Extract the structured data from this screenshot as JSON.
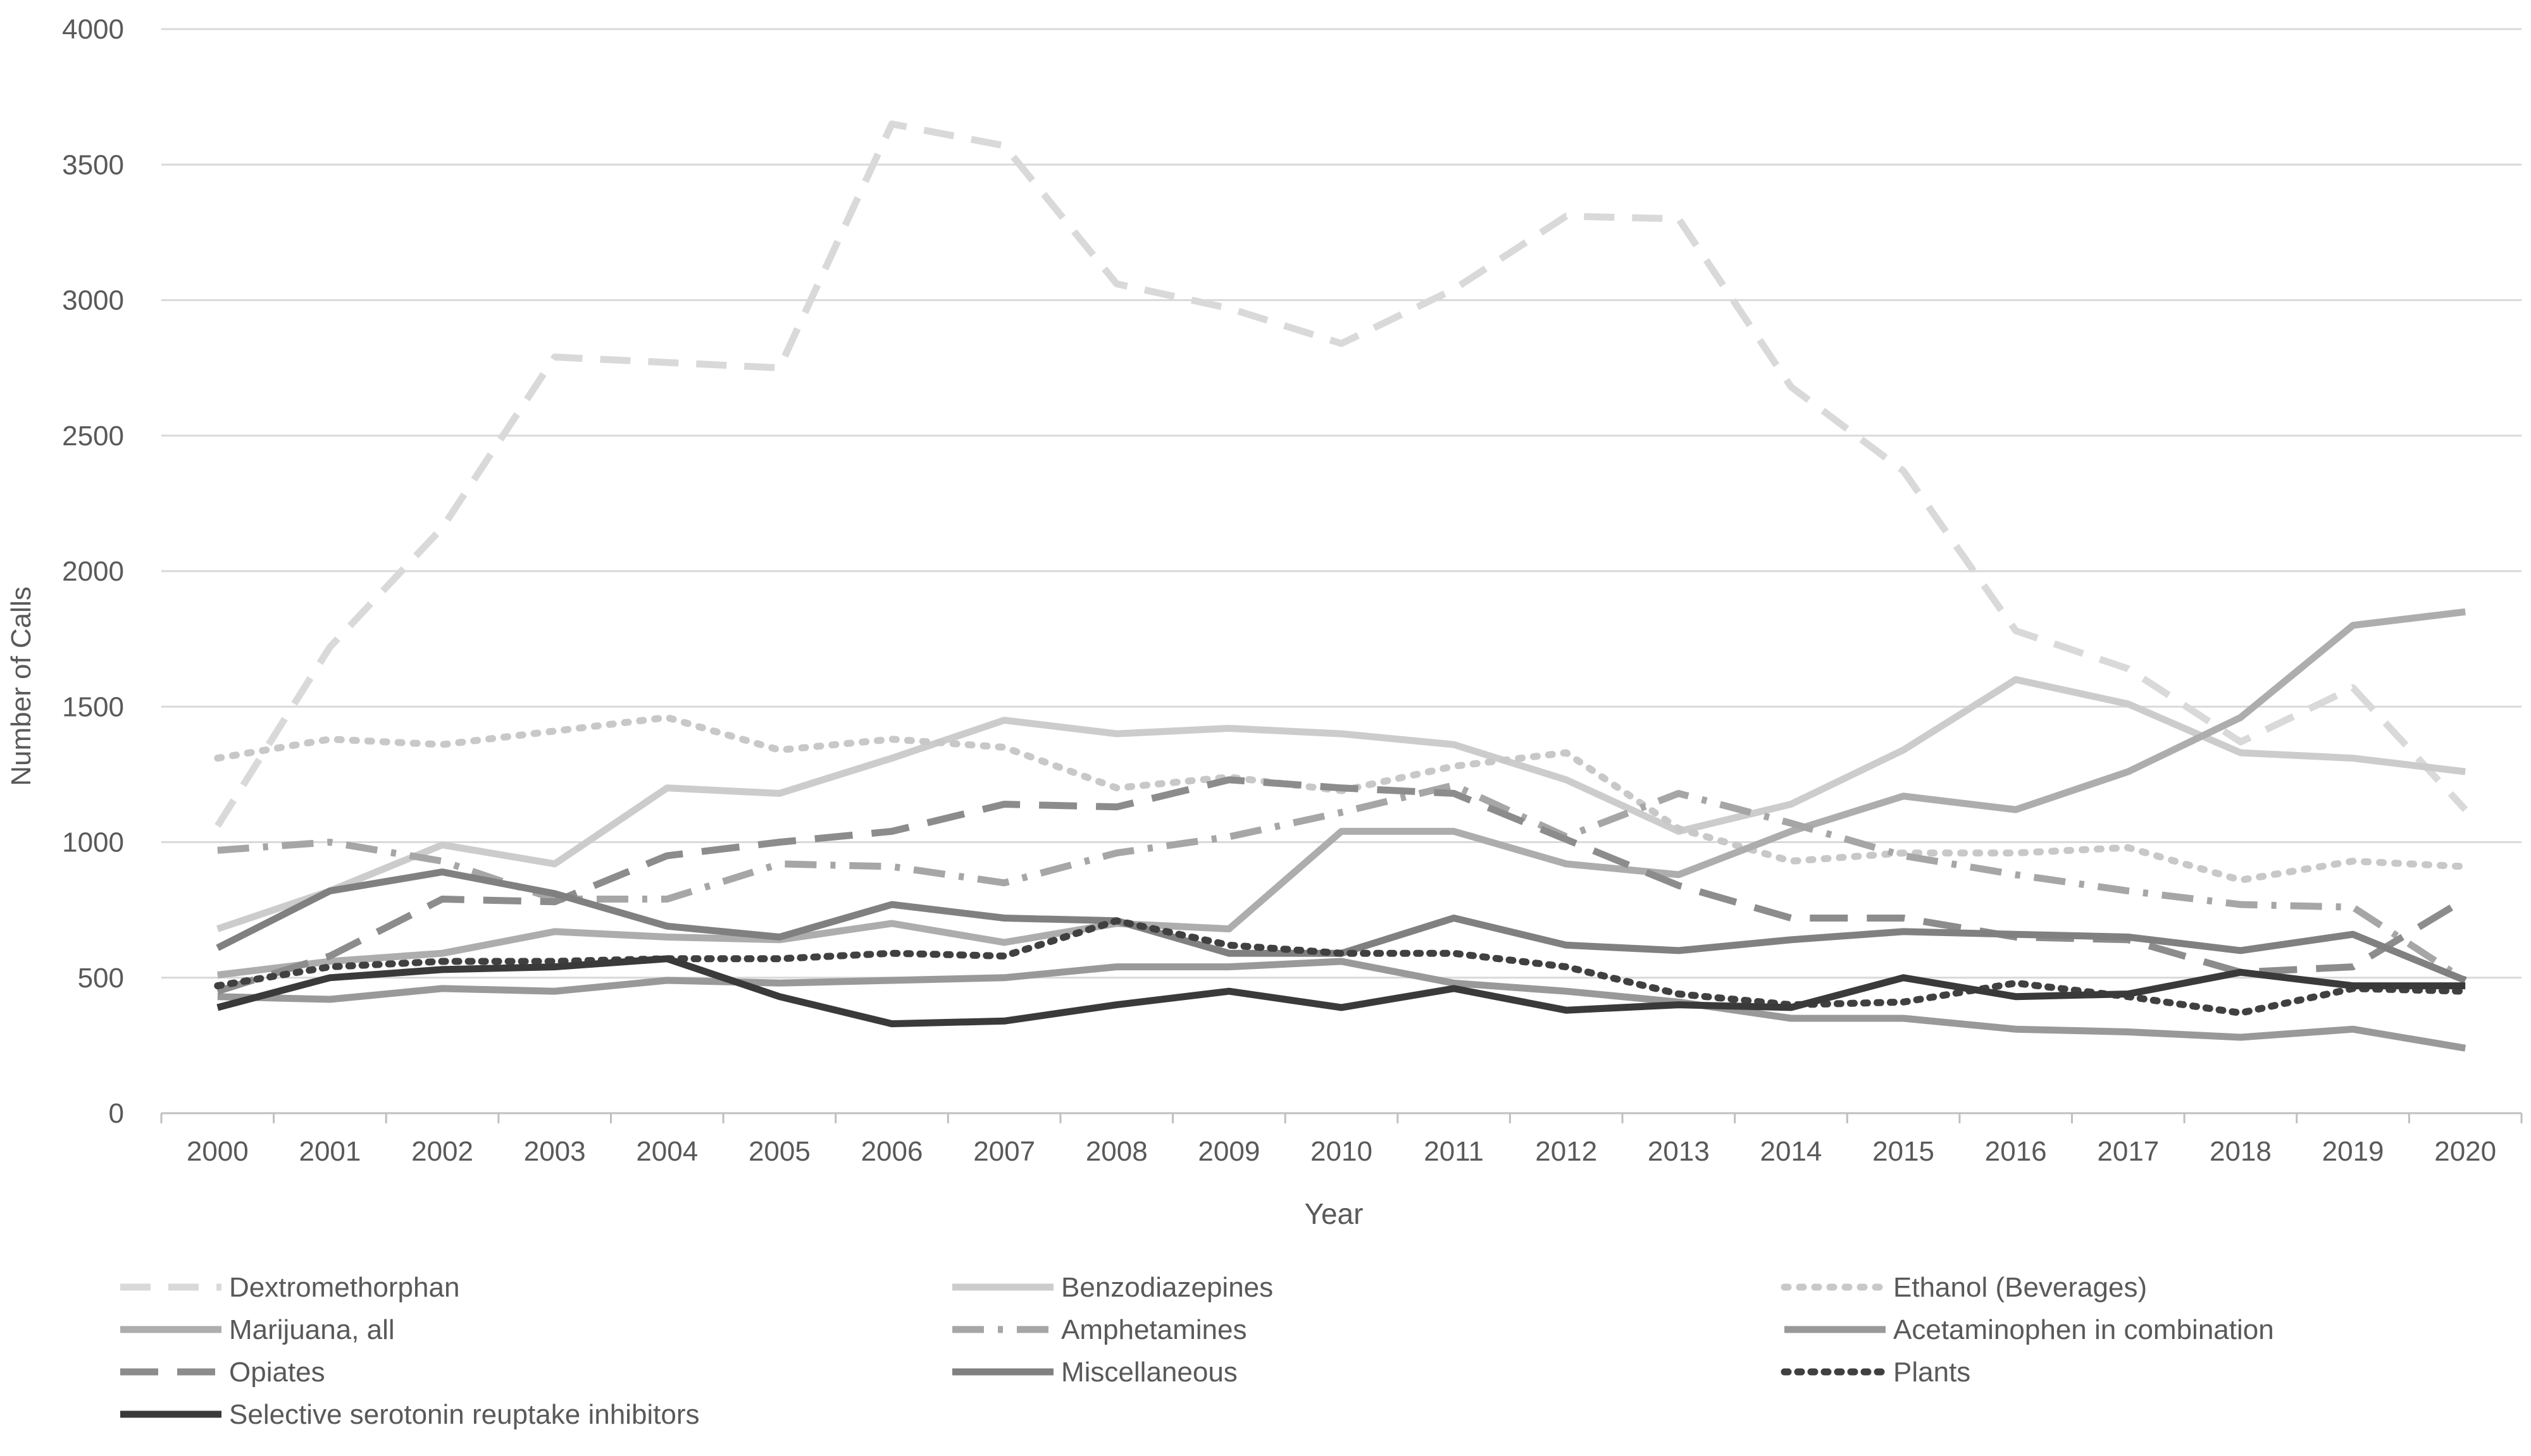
{
  "chart_data": {
    "type": "line",
    "title": "",
    "xlabel": "Year",
    "ylabel": "Number of Calls",
    "ylim": [
      0,
      4000
    ],
    "yticks": [
      0,
      500,
      1000,
      1500,
      2000,
      2500,
      3000,
      3500,
      4000
    ],
    "grid": "horizontal",
    "legend_position": "bottom",
    "x": [
      "2000",
      "2001",
      "2002",
      "2003",
      "2004",
      "2005",
      "2006",
      "2007",
      "2008",
      "2009",
      "2010",
      "2011",
      "2012",
      "2013",
      "2014",
      "2015",
      "2016",
      "2017",
      "2018",
      "2019",
      "2020"
    ],
    "series": [
      {
        "name": "Dextromethorphan",
        "color": "#d9d9d9",
        "style": "dash",
        "values": [
          1060,
          1720,
          2160,
          2790,
          2770,
          2750,
          3650,
          3570,
          3060,
          2970,
          2840,
          3040,
          3310,
          3300,
          2680,
          2370,
          1780,
          1640,
          1370,
          1570,
          1120
        ]
      },
      {
        "name": "Benzodiazepines",
        "color": "#cccccc",
        "style": "solid",
        "values": [
          680,
          820,
          990,
          920,
          1200,
          1180,
          1310,
          1450,
          1400,
          1420,
          1400,
          1360,
          1230,
          1040,
          1140,
          1340,
          1600,
          1510,
          1330,
          1310,
          1260
        ]
      },
      {
        "name": "Ethanol (Beverages)",
        "color": "#c8c8c8",
        "style": "dot",
        "values": [
          1310,
          1380,
          1360,
          1410,
          1460,
          1340,
          1380,
          1350,
          1200,
          1240,
          1190,
          1280,
          1330,
          1050,
          930,
          960,
          960,
          980,
          860,
          930,
          910
        ]
      },
      {
        "name": "Marijuana, all",
        "color": "#adadad",
        "style": "solid",
        "values": [
          510,
          560,
          590,
          670,
          650,
          640,
          700,
          630,
          700,
          680,
          1040,
          1040,
          920,
          880,
          1040,
          1170,
          1120,
          1260,
          1460,
          1800,
          1850
        ]
      },
      {
        "name": "Amphetamines",
        "color": "#a6a6a6",
        "style": "dashdot",
        "values": [
          970,
          1000,
          930,
          790,
          790,
          920,
          910,
          850,
          960,
          1020,
          1110,
          1210,
          1020,
          1180,
          1070,
          950,
          880,
          820,
          770,
          760,
          490
        ]
      },
      {
        "name": "Acetaminophen in combination",
        "color": "#999999",
        "style": "solid",
        "values": [
          430,
          420,
          460,
          450,
          490,
          480,
          490,
          500,
          540,
          540,
          560,
          480,
          450,
          410,
          350,
          350,
          310,
          300,
          280,
          310,
          240
        ]
      },
      {
        "name": "Opiates",
        "color": "#8c8c8c",
        "style": "longdash",
        "values": [
          450,
          580,
          790,
          780,
          950,
          1000,
          1040,
          1140,
          1130,
          1230,
          1200,
          1180,
          1010,
          840,
          720,
          720,
          650,
          640,
          520,
          540,
          790
        ]
      },
      {
        "name": "Miscellaneous",
        "color": "#808080",
        "style": "solid",
        "values": [
          610,
          820,
          890,
          810,
          690,
          650,
          770,
          720,
          710,
          590,
          590,
          720,
          620,
          600,
          640,
          670,
          660,
          650,
          600,
          660,
          490
        ]
      },
      {
        "name": "Plants",
        "color": "#404040",
        "style": "densedot",
        "values": [
          470,
          540,
          560,
          560,
          570,
          570,
          590,
          580,
          710,
          620,
          590,
          590,
          540,
          440,
          400,
          410,
          480,
          430,
          370,
          460,
          450
        ]
      },
      {
        "name": "Selective serotonin reuptake inhibitors",
        "color": "#3a3a3a",
        "style": "solid",
        "values": [
          390,
          500,
          530,
          540,
          570,
          430,
          330,
          340,
          400,
          450,
          390,
          460,
          380,
          400,
          390,
          500,
          430,
          440,
          520,
          470,
          470
        ]
      }
    ]
  }
}
